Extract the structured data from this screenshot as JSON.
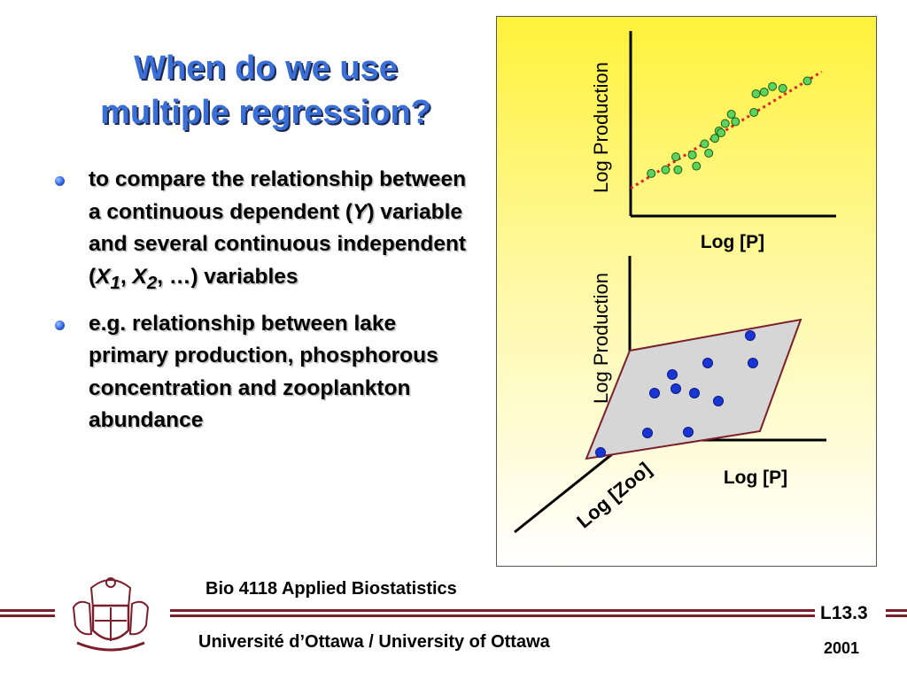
{
  "slide": {
    "title_line1": "When do we use",
    "title_line2": "multiple regression?",
    "bullet1": {
      "t1": "to compare the relationship between a continuous dependent (",
      "y": "Y",
      "t2": ") variable and several continuous independent (",
      "x1": "X",
      "x1sub": "1",
      "sep1": ", ",
      "x2": "X",
      "x2sub": "2",
      "sep2": ", …",
      "t3": ") variables"
    },
    "bullet2": "e.g. relationship between lake primary production, phosphorous concentration and zooplankton abundance"
  },
  "figure": {
    "top_plot": {
      "ylabel": "Log Production",
      "xlabel": "Log [P]"
    },
    "bottom_plot": {
      "ylabel": "Log Production",
      "xlabel": "Log [P]",
      "zlabel": "Log [Zoo]"
    }
  },
  "chart_data": [
    {
      "type": "scatter",
      "title": "",
      "xlabel": "Log [P]",
      "ylabel": "Log Production",
      "x": [
        1.0,
        1.7,
        2.3,
        2.2,
        3.2,
        3.0,
        3.8,
        3.6,
        4.3,
        4.1,
        4.6,
        4.4,
        5.1,
        4.9,
        6.0,
        6.1,
        6.5,
        6.9,
        7.4,
        8.6
      ],
      "y": [
        2.3,
        2.5,
        2.5,
        3.2,
        2.7,
        3.3,
        3.4,
        3.9,
        4.6,
        4.2,
        5.0,
        4.5,
        5.1,
        5.5,
        5.6,
        6.6,
        6.7,
        7.0,
        6.9,
        7.3
      ],
      "fit_line": {
        "x": [
          0.0,
          9.3
        ],
        "y": [
          1.5,
          7.8
        ]
      },
      "xlim": [
        0,
        10
      ],
      "ylim": [
        0,
        10
      ]
    }
  ],
  "footer": {
    "course": "Bio 4118 Applied Biostatistics",
    "university": "Université d’Ottawa / University of Ottawa",
    "lecture": "L13.3",
    "year": "2001"
  },
  "colors": {
    "title": "#3a6fd8",
    "accent": "#7b1f2c",
    "points_top": "#5cd35c",
    "points_bottom": "#1a35d6",
    "fit_line": "#e0202a",
    "plane": "#d6d6d6"
  }
}
